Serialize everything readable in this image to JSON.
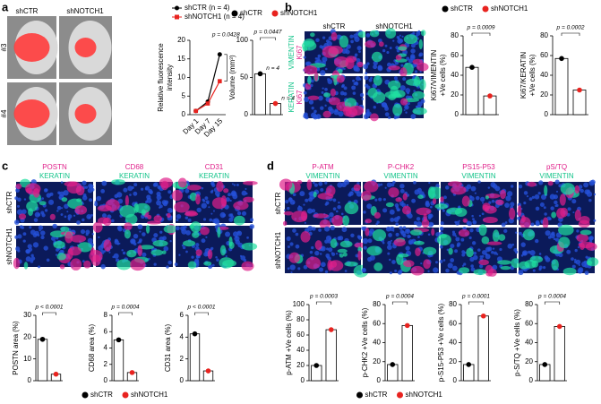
{
  "figure": {
    "panel_labels": [
      "a",
      "b",
      "c",
      "d"
    ],
    "a_images": {
      "columns": [
        "shCTR",
        "shNOTCH1"
      ],
      "rows": [
        "#3",
        "#4"
      ]
    },
    "b_images": {
      "columns": [
        "shCTR",
        "shNOTCH1"
      ],
      "rows": [
        [
          "VIMENTIN",
          "Ki67"
        ],
        [
          "KERATIN",
          "Ki67"
        ]
      ]
    },
    "c_images": {
      "columns": [
        [
          "POSTN",
          "KERATIN"
        ],
        [
          "CD68",
          "KERATIN"
        ],
        [
          "CD31",
          "KERATIN"
        ]
      ],
      "rows": [
        "shCTR",
        "shNOTCH1"
      ]
    },
    "d_images": {
      "columns": [
        [
          "P-ATM",
          "VIMENTIN"
        ],
        [
          "P-CHK2",
          "VIMENTIN"
        ],
        [
          "PS15-P53",
          "VIMENTIN"
        ],
        [
          "pS/TQ",
          "VIMENTIN"
        ]
      ],
      "rows": [
        "shCTR",
        "shNOTCH1"
      ]
    }
  },
  "chart_data": [
    {
      "type": "line",
      "y_label": [
        "Relative fluorescence",
        "intensity"
      ],
      "categories": [
        "Day 1",
        "Day 7",
        "Day 15"
      ],
      "series": [
        {
          "name": "shCTR (n = 4)",
          "color": "#000000",
          "values": [
            1,
            3.5,
            16.2
          ]
        },
        {
          "name": "shNOTCH1 (n = 4)",
          "color": "#e8231f",
          "values": [
            1,
            3,
            9
          ]
        }
      ],
      "ylim": [
        0,
        20
      ],
      "yticks": [
        0,
        5,
        10,
        15,
        20
      ],
      "annotation": "p = 0.0428",
      "legend": "top"
    },
    {
      "type": "bar",
      "y_label": [
        "Volume (mm³)"
      ],
      "categories": [
        "shCTR",
        "shNOTCH1"
      ],
      "colors": [
        "#000000",
        "#e8231f"
      ],
      "values": [
        55,
        15
      ],
      "ylim": [
        0,
        100
      ],
      "yticks": [
        0,
        50,
        100
      ],
      "annotation": "p = 0.0447",
      "value_notes": [
        "n = 4",
        "n = 4"
      ],
      "legend": "top"
    },
    {
      "type": "bar",
      "y_label": [
        "Ki67/VIMENTIN",
        "+Ve cells (%)"
      ],
      "categories": [
        "shCTR",
        "shNOTCH1"
      ],
      "colors": [
        "#000000",
        "#e8231f"
      ],
      "values": [
        48,
        19
      ],
      "ylim": [
        0,
        80
      ],
      "yticks": [
        0,
        20,
        40,
        60,
        80
      ],
      "annotation": "p = 0.0009",
      "legend": "top"
    },
    {
      "type": "bar",
      "y_label": [
        "Ki67/KERATIN",
        "+Ve cells (%)"
      ],
      "categories": [
        "shCTR",
        "shNOTCH1"
      ],
      "colors": [
        "#000000",
        "#e8231f"
      ],
      "values": [
        57,
        25
      ],
      "ylim": [
        0,
        80
      ],
      "yticks": [
        0,
        20,
        40,
        60,
        80
      ],
      "annotation": "p = 0.0002",
      "legend": "none"
    },
    {
      "type": "bar",
      "y_label": [
        "POSTN area (%)"
      ],
      "categories": [
        "shCTR",
        "shNOTCH1"
      ],
      "colors": [
        "#000000",
        "#e8231f"
      ],
      "values": [
        19,
        3
      ],
      "ylim": [
        0,
        30
      ],
      "yticks": [
        0,
        10,
        20,
        30
      ],
      "annotation": "p < 0.0001",
      "legend": "none"
    },
    {
      "type": "bar",
      "y_label": [
        "CD68 area (%)"
      ],
      "categories": [
        "shCTR",
        "shNOTCH1"
      ],
      "colors": [
        "#000000",
        "#e8231f"
      ],
      "values": [
        5,
        1
      ],
      "ylim": [
        0,
        8
      ],
      "yticks": [
        0,
        2,
        4,
        6,
        8
      ],
      "annotation": "p = 0.0004",
      "legend": "bottom"
    },
    {
      "type": "bar",
      "y_label": [
        "CD31 area (%)"
      ],
      "categories": [
        "shCTR",
        "shNOTCH1"
      ],
      "colors": [
        "#000000",
        "#e8231f"
      ],
      "values": [
        4.3,
        0.9
      ],
      "ylim": [
        0,
        6
      ],
      "yticks": [
        0,
        2,
        4,
        6
      ],
      "annotation": "p < 0.0001",
      "legend": "none"
    },
    {
      "type": "bar",
      "y_label": [
        "p-ATM +Ve cells (%)"
      ],
      "categories": [
        "shCTR",
        "shNOTCH1"
      ],
      "colors": [
        "#000000",
        "#e8231f"
      ],
      "values": [
        20,
        67
      ],
      "ylim": [
        0,
        100
      ],
      "yticks": [
        0,
        20,
        40,
        60,
        80,
        100
      ],
      "annotation": "p = 0.0003",
      "legend": "none"
    },
    {
      "type": "bar",
      "y_label": [
        "p-CHK2 +Ve cells (%)"
      ],
      "categories": [
        "shCTR",
        "shNOTCH1"
      ],
      "colors": [
        "#000000",
        "#e8231f"
      ],
      "values": [
        17,
        58
      ],
      "ylim": [
        0,
        80
      ],
      "yticks": [
        0,
        20,
        40,
        60,
        80
      ],
      "annotation": "p = 0.0004",
      "legend": "bottom"
    },
    {
      "type": "bar",
      "y_label": [
        "p-S15-P53 +Ve cells (%)"
      ],
      "categories": [
        "shCTR",
        "shNOTCH1"
      ],
      "colors": [
        "#000000",
        "#e8231f"
      ],
      "values": [
        17,
        68
      ],
      "ylim": [
        0,
        80
      ],
      "yticks": [
        0,
        20,
        40,
        60,
        80
      ],
      "annotation": "p = 0.0001",
      "legend": "none"
    },
    {
      "type": "bar",
      "y_label": [
        "p-S/TQ +Ve cells (%)"
      ],
      "categories": [
        "shCTR",
        "shNOTCH1"
      ],
      "colors": [
        "#000000",
        "#e8231f"
      ],
      "values": [
        17,
        57
      ],
      "ylim": [
        0,
        80
      ],
      "yticks": [
        0,
        20,
        40,
        60,
        80
      ],
      "annotation": "p = 0.0004",
      "legend": "none"
    }
  ]
}
